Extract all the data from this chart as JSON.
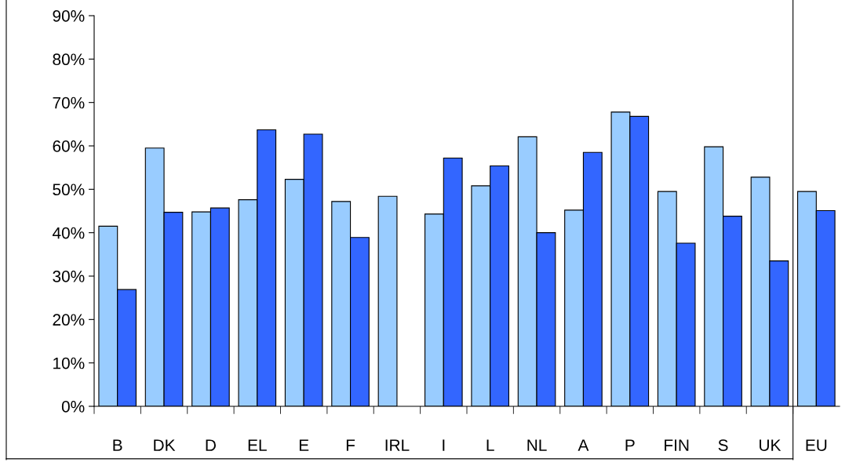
{
  "chart_data": {
    "type": "bar",
    "categories": [
      "B",
      "DK",
      "D",
      "EL",
      "E",
      "F",
      "IRL",
      "I",
      "L",
      "NL",
      "A",
      "P",
      "FIN",
      "S",
      "UK",
      "EU"
    ],
    "series": [
      {
        "color": "#99ccff",
        "values": [
          41.5,
          59.5,
          44.8,
          47.6,
          52.3,
          47.2,
          48.4,
          44.3,
          50.8,
          62.1,
          45.2,
          67.8,
          49.5,
          59.8,
          52.8,
          49.5
        ]
      },
      {
        "color": "#3366ff",
        "values": [
          26.9,
          44.7,
          45.7,
          63.7,
          62.7,
          38.9,
          null,
          57.2,
          55.4,
          40.0,
          58.5,
          66.8,
          37.6,
          43.8,
          33.5,
          45.1
        ]
      }
    ],
    "ylim": [
      0,
      90
    ],
    "yticks": [
      {
        "value": 0,
        "label": "0%"
      },
      {
        "value": 10,
        "label": "10%"
      },
      {
        "value": 20,
        "label": "20%"
      },
      {
        "value": 30,
        "label": "30%"
      },
      {
        "value": 40,
        "label": "40%"
      },
      {
        "value": 50,
        "label": "50%"
      },
      {
        "value": 60,
        "label": "60%"
      },
      {
        "value": 70,
        "label": "70%"
      },
      {
        "value": 80,
        "label": "80%"
      },
      {
        "value": 90,
        "label": "90%"
      }
    ],
    "grid": false,
    "legend": false
  }
}
